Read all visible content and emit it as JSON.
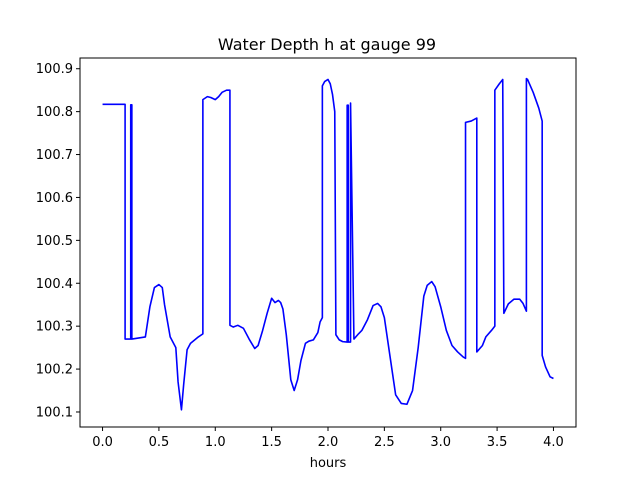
{
  "chart_data": {
    "type": "line",
    "title": "Water Depth h at gauge 99",
    "xlabel": "hours",
    "ylabel": "",
    "xlim": [
      -0.2,
      4.2
    ],
    "ylim": [
      100.065,
      100.925
    ],
    "xticks": [
      0.0,
      0.5,
      1.0,
      1.5,
      2.0,
      2.5,
      3.0,
      3.5,
      4.0
    ],
    "xtick_labels": [
      "0.0",
      "0.5",
      "1.0",
      "1.5",
      "2.0",
      "2.5",
      "3.0",
      "3.5",
      "4.0"
    ],
    "yticks": [
      100.1,
      100.2,
      100.3,
      100.4,
      100.5,
      100.6,
      100.7,
      100.8,
      100.9
    ],
    "ytick_labels": [
      "100.1",
      "100.2",
      "100.3",
      "100.4",
      "100.5",
      "100.6",
      "100.7",
      "100.8",
      "100.9"
    ],
    "grid": false,
    "legend": "none",
    "series": [
      {
        "color": "#0000ff",
        "x": [
          0.0,
          0.2,
          0.2,
          0.25,
          0.25,
          0.26,
          0.26,
          0.38,
          0.42,
          0.46,
          0.5,
          0.53,
          0.55,
          0.6,
          0.65,
          0.67,
          0.7,
          0.72,
          0.75,
          0.78,
          0.85,
          0.89,
          0.89,
          0.93,
          0.96,
          1.0,
          1.03,
          1.06,
          1.1,
          1.13,
          1.13,
          1.16,
          1.2,
          1.25,
          1.3,
          1.35,
          1.38,
          1.42,
          1.46,
          1.5,
          1.53,
          1.56,
          1.58,
          1.6,
          1.63,
          1.67,
          1.7,
          1.73,
          1.76,
          1.8,
          1.83,
          1.87,
          1.91,
          1.93,
          1.95,
          1.95,
          1.97,
          2.0,
          2.02,
          2.04,
          2.06,
          2.07,
          2.07,
          2.1,
          2.13,
          2.17,
          2.17,
          2.18,
          2.18,
          2.2,
          2.2,
          2.23,
          2.27,
          2.3,
          2.35,
          2.4,
          2.44,
          2.47,
          2.5,
          2.55,
          2.6,
          2.65,
          2.7,
          2.75,
          2.8,
          2.85,
          2.88,
          2.92,
          2.95,
          3.0,
          3.05,
          3.1,
          3.15,
          3.2,
          3.22,
          3.22,
          3.27,
          3.32,
          3.32,
          3.37,
          3.4,
          3.45,
          3.48,
          3.48,
          3.52,
          3.55,
          3.55,
          3.56,
          3.6,
          3.65,
          3.7,
          3.73,
          3.76,
          3.76,
          3.77,
          3.82,
          3.87,
          3.9,
          3.9,
          3.93,
          3.97,
          4.0
        ],
        "y": [
          100.817,
          100.817,
          100.27,
          100.27,
          100.816,
          100.816,
          100.27,
          100.275,
          100.345,
          100.39,
          100.397,
          100.39,
          100.35,
          100.275,
          100.25,
          100.17,
          100.105,
          100.165,
          100.245,
          100.26,
          100.275,
          100.282,
          100.828,
          100.835,
          100.833,
          100.828,
          100.835,
          100.845,
          100.85,
          100.85,
          100.302,
          100.298,
          100.302,
          100.295,
          100.27,
          100.248,
          100.255,
          100.29,
          100.33,
          100.365,
          100.355,
          100.36,
          100.355,
          100.34,
          100.28,
          100.175,
          100.15,
          100.175,
          100.22,
          100.26,
          100.265,
          100.268,
          100.285,
          100.31,
          100.32,
          100.86,
          100.87,
          100.875,
          100.865,
          100.84,
          100.8,
          100.28,
          100.28,
          100.268,
          100.264,
          100.263,
          100.815,
          100.815,
          100.263,
          100.263,
          100.82,
          100.27,
          100.282,
          100.29,
          100.315,
          100.348,
          100.353,
          100.345,
          100.32,
          100.23,
          100.14,
          100.12,
          100.118,
          100.15,
          100.25,
          100.37,
          100.395,
          100.404,
          100.392,
          100.345,
          100.29,
          100.255,
          100.24,
          100.228,
          100.225,
          100.775,
          100.778,
          100.785,
          100.24,
          100.255,
          100.275,
          100.29,
          100.3,
          100.85,
          100.865,
          100.875,
          100.875,
          100.33,
          100.352,
          100.363,
          100.363,
          100.353,
          100.335,
          100.877,
          100.875,
          100.845,
          100.808,
          100.778,
          100.232,
          100.205,
          100.182,
          100.178
        ]
      }
    ]
  }
}
